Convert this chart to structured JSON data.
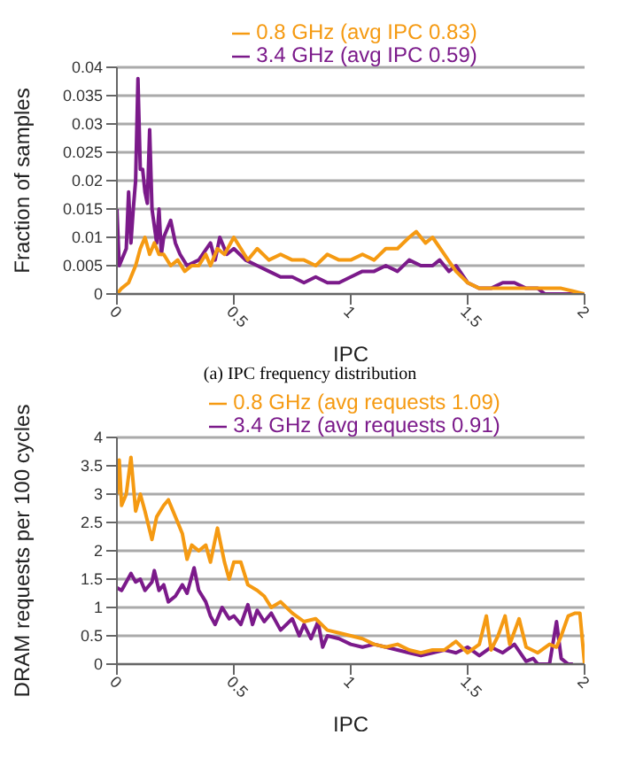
{
  "chart_data": [
    {
      "type": "line",
      "xlabel": "IPC",
      "ylabel": "Fraction of samples",
      "annotations": [
        "(a) IPC frequency distribution"
      ],
      "xlim": [
        0,
        2
      ],
      "xticks": [
        0,
        0.5,
        1,
        1.5,
        2
      ],
      "ylim": [
        0,
        0.04
      ],
      "yticks": [
        0,
        0.005,
        0.01,
        0.015,
        0.02,
        0.025,
        0.03,
        0.035,
        0.04
      ],
      "grid": "y",
      "legend": "top",
      "marker": "none",
      "line_style": "solid",
      "series": [
        {
          "name": "3.4 GHz (avg IPC 0.59)",
          "color": "#7b1a8a",
          "x": [
            0,
            0.01,
            0.03,
            0.04,
            0.05,
            0.06,
            0.07,
            0.08,
            0.09,
            0.1,
            0.11,
            0.12,
            0.13,
            0.14,
            0.15,
            0.16,
            0.17,
            0.18,
            0.19,
            0.2,
            0.22,
            0.23,
            0.25,
            0.27,
            0.3,
            0.35,
            0.4,
            0.42,
            0.44,
            0.47,
            0.5,
            0.55,
            0.6,
            0.65,
            0.7,
            0.75,
            0.8,
            0.85,
            0.9,
            0.95,
            1.0,
            1.05,
            1.1,
            1.15,
            1.2,
            1.25,
            1.3,
            1.35,
            1.38,
            1.42,
            1.45,
            1.5,
            1.55,
            1.6,
            1.65,
            1.7,
            1.75,
            1.8,
            1.83,
            1.9,
            1.95,
            2.0
          ],
          "values": [
            0.015,
            0.005,
            0.007,
            0.008,
            0.018,
            0.009,
            0.015,
            0.02,
            0.038,
            0.022,
            0.022,
            0.018,
            0.016,
            0.029,
            0.015,
            0.012,
            0.009,
            0.015,
            0.007,
            0.01,
            0.012,
            0.013,
            0.009,
            0.007,
            0.005,
            0.006,
            0.009,
            0.006,
            0.01,
            0.007,
            0.008,
            0.006,
            0.005,
            0.004,
            0.003,
            0.003,
            0.002,
            0.003,
            0.002,
            0.002,
            0.003,
            0.004,
            0.004,
            0.005,
            0.004,
            0.006,
            0.005,
            0.005,
            0.006,
            0.004,
            0.005,
            0.002,
            0.001,
            0.001,
            0.002,
            0.002,
            0.001,
            0.001,
            0,
            0,
            0,
            0
          ]
        },
        {
          "name": "0.8 GHz (avg IPC 0.83)",
          "color": "#f59a12",
          "x": [
            0,
            0.02,
            0.05,
            0.08,
            0.1,
            0.12,
            0.14,
            0.16,
            0.18,
            0.2,
            0.23,
            0.26,
            0.29,
            0.32,
            0.35,
            0.38,
            0.4,
            0.43,
            0.46,
            0.5,
            0.53,
            0.56,
            0.6,
            0.65,
            0.7,
            0.75,
            0.8,
            0.85,
            0.9,
            0.95,
            1.0,
            1.05,
            1.1,
            1.15,
            1.2,
            1.25,
            1.28,
            1.32,
            1.35,
            1.4,
            1.45,
            1.5,
            1.55,
            1.6,
            1.7,
            1.8,
            1.9,
            1.95,
            2.0
          ],
          "values": [
            0,
            0.001,
            0.002,
            0.005,
            0.008,
            0.01,
            0.007,
            0.009,
            0.007,
            0.007,
            0.005,
            0.006,
            0.004,
            0.005,
            0.005,
            0.007,
            0.005,
            0.008,
            0.007,
            0.01,
            0.008,
            0.006,
            0.008,
            0.006,
            0.007,
            0.006,
            0.006,
            0.005,
            0.007,
            0.006,
            0.006,
            0.007,
            0.006,
            0.008,
            0.008,
            0.01,
            0.011,
            0.009,
            0.01,
            0.007,
            0.004,
            0.002,
            0.001,
            0.001,
            0.001,
            0.001,
            0.001,
            0.0005,
            0
          ]
        }
      ]
    },
    {
      "type": "line",
      "xlabel": "IPC",
      "ylabel": "DRAM requests per 100 cycles",
      "xlim": [
        0,
        2
      ],
      "xticks": [
        0,
        0.5,
        1,
        1.5,
        2
      ],
      "ylim": [
        0,
        4
      ],
      "yticks": [
        0,
        0.5,
        1,
        1.5,
        2,
        2.5,
        3,
        3.5,
        4
      ],
      "grid": "y",
      "legend": "top",
      "marker": "none",
      "line_style": "solid",
      "series": [
        {
          "name": "3.4 GHz (avg requests 0.91)",
          "color": "#7b1a8a",
          "x": [
            0,
            0.02,
            0.04,
            0.06,
            0.08,
            0.1,
            0.12,
            0.15,
            0.16,
            0.18,
            0.2,
            0.22,
            0.25,
            0.28,
            0.3,
            0.33,
            0.35,
            0.38,
            0.4,
            0.42,
            0.45,
            0.48,
            0.5,
            0.53,
            0.56,
            0.58,
            0.6,
            0.63,
            0.66,
            0.7,
            0.75,
            0.78,
            0.8,
            0.83,
            0.86,
            0.88,
            0.9,
            0.95,
            1.0,
            1.05,
            1.1,
            1.15,
            1.2,
            1.25,
            1.3,
            1.35,
            1.4,
            1.45,
            1.5,
            1.55,
            1.6,
            1.65,
            1.7,
            1.75,
            1.78,
            1.8,
            1.85,
            1.88,
            1.9,
            1.93,
            1.95
          ],
          "values": [
            1.35,
            1.3,
            1.45,
            1.6,
            1.45,
            1.5,
            1.3,
            1.45,
            1.65,
            1.3,
            1.4,
            1.1,
            1.2,
            1.4,
            1.25,
            1.7,
            1.3,
            1.1,
            0.85,
            0.7,
            1.0,
            0.8,
            0.85,
            0.7,
            1.05,
            0.7,
            0.95,
            0.75,
            0.9,
            0.6,
            0.8,
            0.5,
            0.7,
            0.45,
            0.75,
            0.3,
            0.5,
            0.45,
            0.35,
            0.3,
            0.35,
            0.3,
            0.25,
            0.2,
            0.15,
            0.2,
            0.25,
            0.2,
            0.3,
            0.15,
            0.3,
            0.2,
            0.35,
            0.05,
            0.1,
            0,
            0,
            0.75,
            0.1,
            0,
            0
          ]
        },
        {
          "name": "0.8 GHz (avg requests 1.09)",
          "color": "#f59a12",
          "x": [
            0,
            0.01,
            0.02,
            0.04,
            0.06,
            0.08,
            0.1,
            0.12,
            0.15,
            0.17,
            0.2,
            0.22,
            0.25,
            0.28,
            0.3,
            0.32,
            0.35,
            0.38,
            0.4,
            0.43,
            0.46,
            0.48,
            0.5,
            0.53,
            0.56,
            0.6,
            0.63,
            0.66,
            0.7,
            0.75,
            0.8,
            0.85,
            0.9,
            0.95,
            1.0,
            1.05,
            1.1,
            1.15,
            1.2,
            1.25,
            1.3,
            1.35,
            1.4,
            1.45,
            1.5,
            1.55,
            1.58,
            1.6,
            1.63,
            1.66,
            1.68,
            1.72,
            1.75,
            1.8,
            1.85,
            1.88,
            1.9,
            1.93,
            1.96,
            1.98,
            2.0
          ],
          "values": [
            3.0,
            3.6,
            2.8,
            3.0,
            3.65,
            2.7,
            3.0,
            2.7,
            2.2,
            2.6,
            2.8,
            2.9,
            2.6,
            2.3,
            1.85,
            2.1,
            2.0,
            2.1,
            1.8,
            2.4,
            1.8,
            1.5,
            1.8,
            1.8,
            1.4,
            1.3,
            1.2,
            1.0,
            1.1,
            0.9,
            0.75,
            0.8,
            0.6,
            0.55,
            0.5,
            0.45,
            0.35,
            0.3,
            0.35,
            0.25,
            0.2,
            0.25,
            0.25,
            0.4,
            0.2,
            0.35,
            0.85,
            0.25,
            0.5,
            0.85,
            0.35,
            0.8,
            0.3,
            0.2,
            0.35,
            0.3,
            0.5,
            0.85,
            0.9,
            0.9,
            0
          ]
        }
      ]
    }
  ]
}
